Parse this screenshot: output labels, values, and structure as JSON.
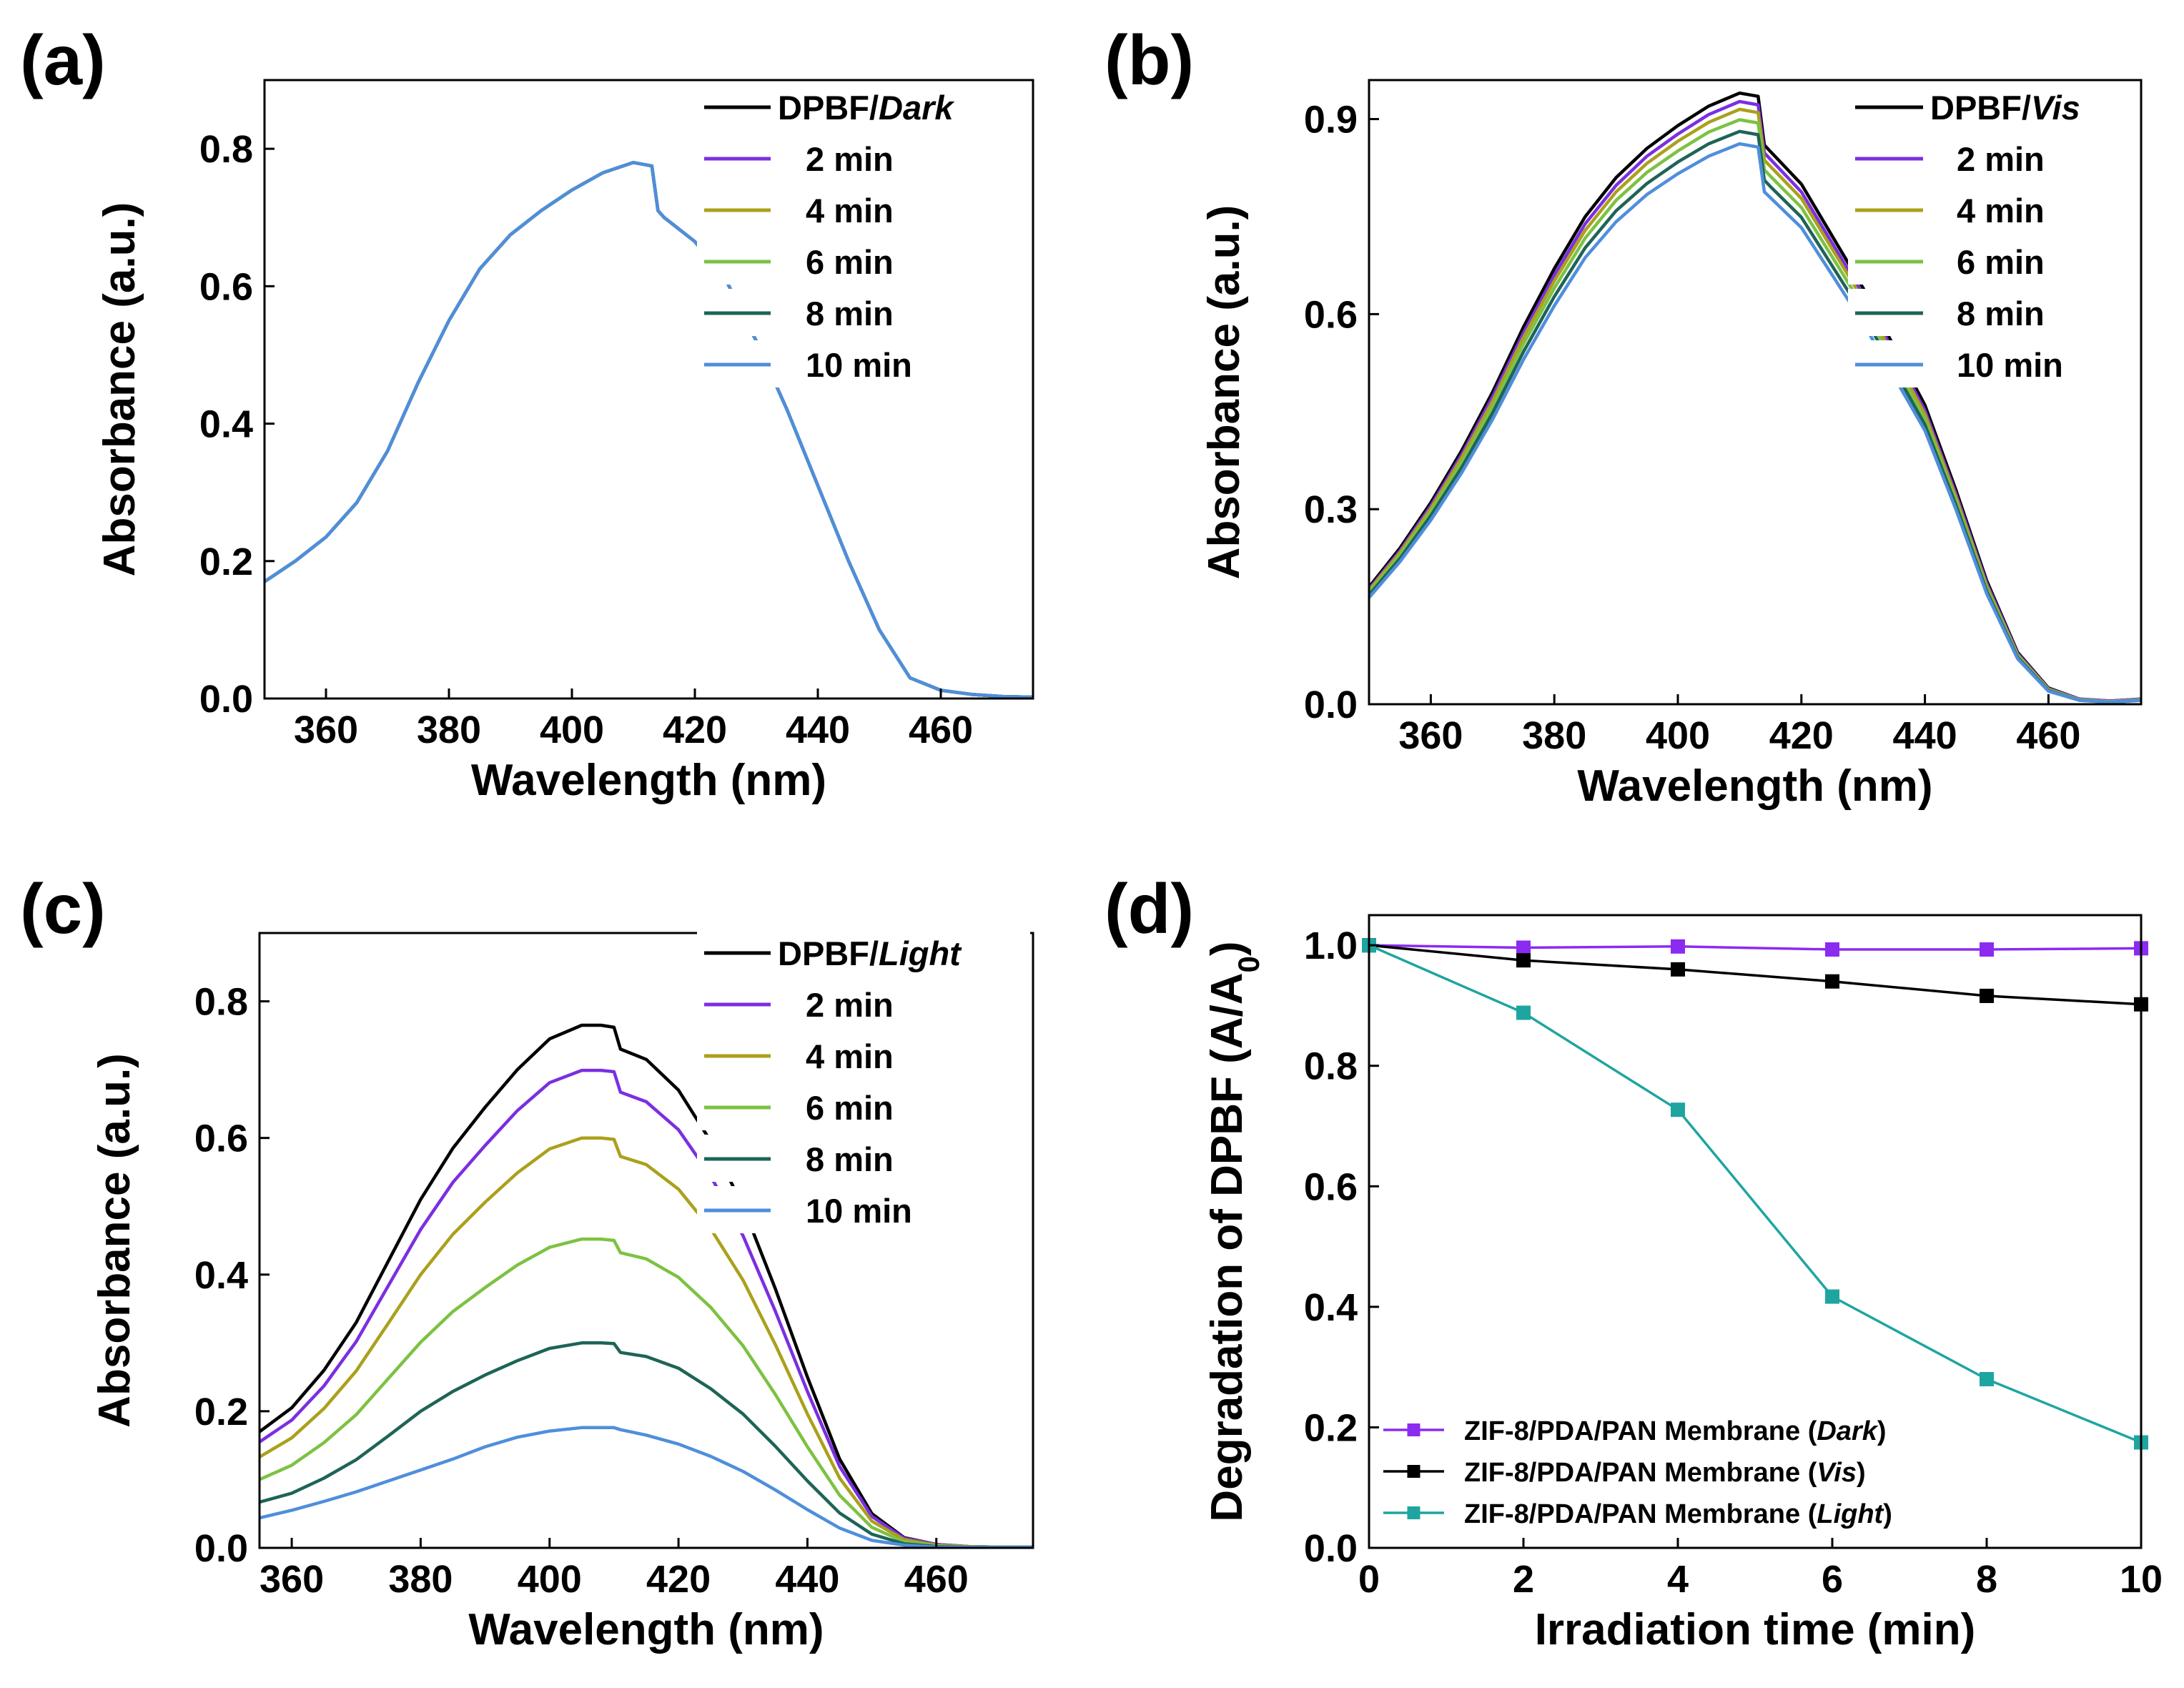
{
  "colors": {
    "black": "#000000",
    "purple": "#7B2FE0",
    "olive": "#ABA01C",
    "lightgreen": "#7CC242",
    "darkteal": "#1E6456",
    "blue": "#4F8EDC",
    "teal": "#1FA5A0",
    "dark_purple": "#8B2BF0"
  },
  "chart_data": [
    {
      "panel_label": "(a)",
      "type": "line",
      "xlabel": "Wavelength (nm)",
      "ylabel": "Absorbance (a.u.)",
      "xlim": [
        350,
        475
      ],
      "ylim": [
        0,
        0.9
      ],
      "xticks": [
        "360",
        "380",
        "400",
        "420",
        "440",
        "460"
      ],
      "yticks": [
        "0.0",
        "0.2",
        "0.4",
        "0.6",
        "0.8"
      ],
      "legend": {
        "position": "top-right",
        "title_prefix": "DPBF/",
        "title_italic": "Dark"
      },
      "x": [
        350,
        355,
        360,
        365,
        370,
        375,
        380,
        385,
        390,
        395,
        400,
        405,
        410,
        413,
        414,
        415,
        420,
        425,
        430,
        435,
        440,
        445,
        450,
        455,
        460,
        465,
        470,
        475
      ],
      "series": [
        {
          "name": "DPBF/Dark",
          "values": [
            0.17,
            0.2,
            0.235,
            0.285,
            0.36,
            0.46,
            0.55,
            0.625,
            0.675,
            0.71,
            0.74,
            0.765,
            0.78,
            0.775,
            0.71,
            0.7,
            0.665,
            0.61,
            0.52,
            0.42,
            0.31,
            0.2,
            0.1,
            0.03,
            0.012,
            0.006,
            0.003,
            0.002
          ]
        },
        {
          "name": "2 min",
          "values": [
            0.17,
            0.2,
            0.235,
            0.285,
            0.36,
            0.46,
            0.55,
            0.625,
            0.675,
            0.71,
            0.74,
            0.765,
            0.78,
            0.775,
            0.71,
            0.7,
            0.665,
            0.61,
            0.52,
            0.42,
            0.31,
            0.2,
            0.1,
            0.03,
            0.012,
            0.006,
            0.003,
            0.002
          ]
        },
        {
          "name": "4 min",
          "values": [
            0.17,
            0.2,
            0.235,
            0.285,
            0.36,
            0.46,
            0.55,
            0.625,
            0.675,
            0.71,
            0.74,
            0.765,
            0.78,
            0.775,
            0.71,
            0.7,
            0.665,
            0.61,
            0.52,
            0.42,
            0.31,
            0.2,
            0.1,
            0.03,
            0.012,
            0.006,
            0.003,
            0.002
          ]
        },
        {
          "name": "6 min",
          "values": [
            0.17,
            0.2,
            0.235,
            0.285,
            0.36,
            0.46,
            0.55,
            0.625,
            0.675,
            0.71,
            0.74,
            0.765,
            0.78,
            0.775,
            0.71,
            0.7,
            0.665,
            0.61,
            0.52,
            0.42,
            0.31,
            0.2,
            0.1,
            0.03,
            0.012,
            0.006,
            0.003,
            0.002
          ]
        },
        {
          "name": "8 min",
          "values": [
            0.17,
            0.2,
            0.235,
            0.285,
            0.36,
            0.46,
            0.55,
            0.625,
            0.675,
            0.71,
            0.74,
            0.765,
            0.78,
            0.775,
            0.71,
            0.7,
            0.665,
            0.61,
            0.52,
            0.42,
            0.31,
            0.2,
            0.1,
            0.03,
            0.012,
            0.006,
            0.003,
            0.002
          ]
        },
        {
          "name": "10 min",
          "values": [
            0.17,
            0.2,
            0.235,
            0.285,
            0.36,
            0.46,
            0.55,
            0.625,
            0.675,
            0.71,
            0.74,
            0.765,
            0.78,
            0.775,
            0.71,
            0.7,
            0.665,
            0.61,
            0.52,
            0.42,
            0.31,
            0.2,
            0.1,
            0.03,
            0.012,
            0.006,
            0.003,
            0.002
          ]
        }
      ]
    },
    {
      "panel_label": "(b)",
      "type": "line",
      "xlabel": "Wavelength (nm)",
      "ylabel": "Absorbance (a.u.)",
      "xlim": [
        350,
        475
      ],
      "ylim": [
        0,
        0.96
      ],
      "xticks": [
        "360",
        "380",
        "400",
        "420",
        "440",
        "460"
      ],
      "yticks": [
        "0.0",
        "0.3",
        "0.6",
        "0.9"
      ],
      "legend": {
        "position": "top-right",
        "title_prefix": "DPBF/",
        "title_italic": "Vis"
      },
      "x": [
        350,
        355,
        360,
        365,
        370,
        375,
        380,
        385,
        390,
        395,
        400,
        405,
        410,
        413,
        414,
        415,
        420,
        425,
        430,
        435,
        440,
        445,
        450,
        455,
        460,
        465,
        470,
        475
      ],
      "series": [
        {
          "name": "DPBF/Vis",
          "values": [
            0.18,
            0.24,
            0.31,
            0.39,
            0.48,
            0.58,
            0.67,
            0.75,
            0.81,
            0.855,
            0.89,
            0.92,
            0.94,
            0.935,
            0.86,
            0.85,
            0.8,
            0.72,
            0.64,
            0.55,
            0.46,
            0.33,
            0.19,
            0.08,
            0.025,
            0.008,
            0.005,
            0.008
          ]
        },
        {
          "name": "2 min",
          "values": [
            0.177,
            0.236,
            0.305,
            0.384,
            0.473,
            0.571,
            0.66,
            0.739,
            0.798,
            0.843,
            0.877,
            0.907,
            0.927,
            0.922,
            0.848,
            0.838,
            0.788,
            0.709,
            0.63,
            0.541,
            0.452,
            0.324,
            0.186,
            0.078,
            0.024,
            0.008,
            0.005,
            0.008
          ]
        },
        {
          "name": "4 min",
          "values": [
            0.175,
            0.233,
            0.301,
            0.379,
            0.466,
            0.564,
            0.651,
            0.729,
            0.788,
            0.832,
            0.866,
            0.895,
            0.915,
            0.91,
            0.837,
            0.827,
            0.778,
            0.7,
            0.622,
            0.534,
            0.446,
            0.319,
            0.182,
            0.076,
            0.023,
            0.007,
            0.004,
            0.007
          ]
        },
        {
          "name": "6 min",
          "values": [
            0.172,
            0.229,
            0.296,
            0.372,
            0.458,
            0.554,
            0.64,
            0.717,
            0.775,
            0.818,
            0.851,
            0.88,
            0.899,
            0.894,
            0.822,
            0.812,
            0.764,
            0.688,
            0.611,
            0.525,
            0.438,
            0.313,
            0.178,
            0.074,
            0.022,
            0.007,
            0.004,
            0.007
          ]
        },
        {
          "name": "8 min",
          "values": [
            0.168,
            0.224,
            0.29,
            0.364,
            0.448,
            0.542,
            0.627,
            0.702,
            0.759,
            0.801,
            0.834,
            0.862,
            0.881,
            0.876,
            0.806,
            0.796,
            0.749,
            0.674,
            0.599,
            0.515,
            0.43,
            0.307,
            0.174,
            0.072,
            0.021,
            0.006,
            0.003,
            0.006
          ]
        },
        {
          "name": "10 min",
          "values": [
            0.164,
            0.219,
            0.283,
            0.356,
            0.438,
            0.53,
            0.613,
            0.687,
            0.742,
            0.784,
            0.816,
            0.843,
            0.862,
            0.857,
            0.788,
            0.779,
            0.733,
            0.66,
            0.586,
            0.504,
            0.421,
            0.3,
            0.17,
            0.07,
            0.02,
            0.006,
            0.003,
            0.006
          ]
        }
      ]
    },
    {
      "panel_label": "(c)",
      "type": "line",
      "xlabel": "Wavelength (nm)",
      "ylabel": "Absorbance (a.u.)",
      "xlim": [
        355,
        475
      ],
      "ylim": [
        0,
        0.9
      ],
      "xticks": [
        "360",
        "380",
        "400",
        "420",
        "440",
        "460"
      ],
      "yticks": [
        "0.0",
        "0.2",
        "0.4",
        "0.6",
        "0.8"
      ],
      "legend": {
        "position": "top-right",
        "title_prefix": "DPBF/",
        "title_italic": "Light"
      },
      "x": [
        355,
        360,
        365,
        370,
        375,
        380,
        385,
        390,
        395,
        400,
        405,
        408,
        410,
        411,
        415,
        420,
        425,
        430,
        435,
        440,
        445,
        450,
        455,
        460,
        465,
        470,
        475
      ],
      "series": [
        {
          "name": "DPBF/Light",
          "values": [
            0.17,
            0.205,
            0.26,
            0.33,
            0.42,
            0.51,
            0.585,
            0.645,
            0.7,
            0.745,
            0.765,
            0.765,
            0.762,
            0.73,
            0.715,
            0.67,
            0.595,
            0.5,
            0.38,
            0.25,
            0.13,
            0.05,
            0.015,
            0.005,
            0.002,
            0.001,
            0.001
          ]
        },
        {
          "name": "2 min",
          "values": [
            0.155,
            0.187,
            0.237,
            0.302,
            0.384,
            0.466,
            0.535,
            0.589,
            0.64,
            0.681,
            0.699,
            0.699,
            0.697,
            0.667,
            0.653,
            0.612,
            0.544,
            0.457,
            0.347,
            0.229,
            0.119,
            0.046,
            0.014,
            0.005,
            0.002,
            0.001,
            0.001
          ]
        },
        {
          "name": "4 min",
          "values": [
            0.133,
            0.161,
            0.204,
            0.259,
            0.329,
            0.4,
            0.459,
            0.506,
            0.549,
            0.584,
            0.6,
            0.6,
            0.598,
            0.573,
            0.561,
            0.525,
            0.467,
            0.392,
            0.298,
            0.196,
            0.102,
            0.039,
            0.012,
            0.004,
            0.002,
            0.001,
            0.001
          ]
        },
        {
          "name": "6 min",
          "values": [
            0.1,
            0.121,
            0.154,
            0.195,
            0.248,
            0.301,
            0.346,
            0.381,
            0.414,
            0.44,
            0.452,
            0.452,
            0.45,
            0.432,
            0.423,
            0.396,
            0.352,
            0.296,
            0.225,
            0.148,
            0.077,
            0.03,
            0.009,
            0.003,
            0.001,
            0.001,
            0.001
          ]
        },
        {
          "name": "8 min",
          "values": [
            0.067,
            0.08,
            0.102,
            0.129,
            0.164,
            0.2,
            0.229,
            0.253,
            0.274,
            0.292,
            0.3,
            0.3,
            0.299,
            0.286,
            0.28,
            0.263,
            0.233,
            0.196,
            0.149,
            0.098,
            0.051,
            0.02,
            0.006,
            0.002,
            0.001,
            0.001,
            0.001
          ]
        },
        {
          "name": "10 min",
          "values": [
            0.044,
            0.055,
            0.068,
            0.082,
            0.098,
            0.114,
            0.13,
            0.148,
            0.162,
            0.171,
            0.176,
            0.176,
            0.176,
            0.173,
            0.165,
            0.152,
            0.134,
            0.112,
            0.085,
            0.056,
            0.029,
            0.011,
            0.004,
            0.001,
            0.001,
            0.001,
            0.001
          ]
        }
      ]
    },
    {
      "panel_label": "(d)",
      "type": "line",
      "xlabel": "Irradiation time (min)",
      "ylabel": "Degradation of DPBF (A/A",
      "ylabel_sub": "0",
      "ylabel_close": ")",
      "xlim": [
        0,
        10
      ],
      "ylim": [
        0,
        1.05
      ],
      "xticks": [
        "0",
        "2",
        "4",
        "6",
        "8",
        "10"
      ],
      "yticks": [
        "0.0",
        "0.2",
        "0.4",
        "0.6",
        "0.8",
        "1.0"
      ],
      "legend": {
        "position": "bottom-left"
      },
      "x": [
        0,
        2,
        4,
        6,
        8,
        10
      ],
      "series": [
        {
          "name": "ZIF-8/PDA/PAN Membrane",
          "condition": "Dark",
          "marker": "square",
          "values": [
            1.0,
            0.996,
            0.998,
            0.993,
            0.993,
            0.995
          ]
        },
        {
          "name": "ZIF-8/PDA/PAN Membrane",
          "condition": "Vis",
          "marker": "square",
          "values": [
            1.0,
            0.975,
            0.96,
            0.94,
            0.916,
            0.902
          ]
        },
        {
          "name": "ZIF-8/PDA/PAN Membrane",
          "condition": "Light",
          "marker": "square",
          "values": [
            1.0,
            0.888,
            0.727,
            0.417,
            0.28,
            0.175
          ]
        }
      ]
    }
  ]
}
